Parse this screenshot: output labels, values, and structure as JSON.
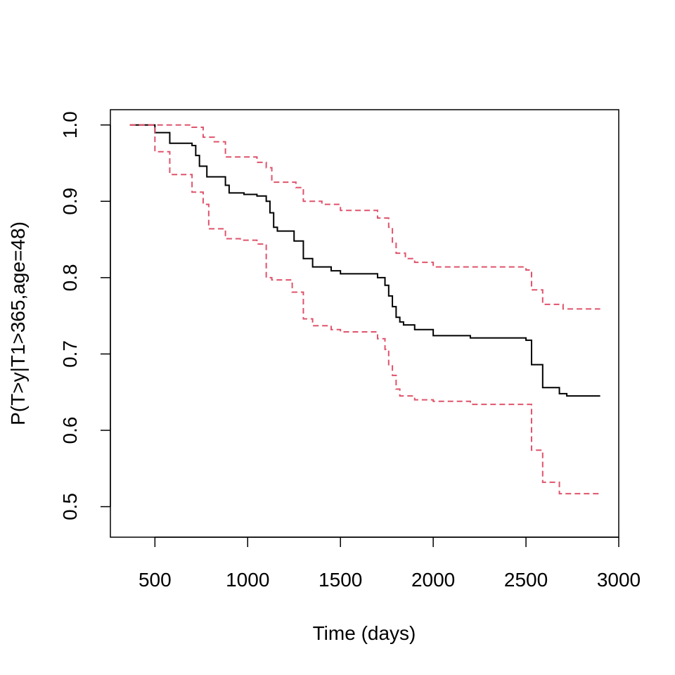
{
  "chart_data": {
    "type": "line",
    "title": "",
    "xlabel": "Time (days)",
    "ylabel": "P(T>y|T1>365,age=48)",
    "xlim": [
      260,
      3000
    ],
    "ylim": [
      0.46,
      1.02
    ],
    "x_ticks": [
      500,
      1000,
      1500,
      2000,
      2500,
      3000
    ],
    "y_ticks": [
      0.5,
      0.6,
      0.7,
      0.8,
      0.9,
      1.0
    ],
    "x_tick_labels": [
      "500",
      "1000",
      "1500",
      "2000",
      "2500",
      "3000"
    ],
    "y_tick_labels": [
      "0.5",
      "0.6",
      "0.7",
      "0.8",
      "0.9",
      "1.0"
    ],
    "grid": false,
    "legend": "none",
    "series": [
      {
        "role": "estimate",
        "color": "#000000",
        "style": "solid",
        "step": true,
        "x": [
          365,
          500,
          580,
          700,
          720,
          740,
          780,
          880,
          900,
          980,
          1050,
          1100,
          1120,
          1140,
          1160,
          1250,
          1300,
          1350,
          1450,
          1500,
          1700,
          1740,
          1760,
          1780,
          1800,
          1820,
          1840,
          1900,
          2000,
          2200,
          2500,
          2530,
          2590,
          2680,
          2720,
          2900
        ],
        "y": [
          1.0,
          0.99,
          0.976,
          0.973,
          0.96,
          0.946,
          0.932,
          0.921,
          0.911,
          0.909,
          0.907,
          0.9,
          0.885,
          0.866,
          0.861,
          0.848,
          0.825,
          0.814,
          0.809,
          0.805,
          0.8,
          0.79,
          0.776,
          0.762,
          0.748,
          0.742,
          0.738,
          0.732,
          0.724,
          0.721,
          0.718,
          0.686,
          0.656,
          0.648,
          0.645,
          0.645
        ]
      },
      {
        "role": "upper",
        "color": "#DF536B",
        "style": "dashed",
        "step": true,
        "x": [
          365,
          700,
          760,
          820,
          880,
          1050,
          1100,
          1130,
          1260,
          1300,
          1400,
          1500,
          1700,
          1760,
          1780,
          1800,
          1850,
          1900,
          2000,
          2500,
          2530,
          2590,
          2700,
          2900
        ],
        "y": [
          1.0,
          0.997,
          0.984,
          0.978,
          0.958,
          0.951,
          0.944,
          0.925,
          0.918,
          0.9,
          0.896,
          0.888,
          0.878,
          0.866,
          0.845,
          0.832,
          0.825,
          0.82,
          0.814,
          0.81,
          0.784,
          0.765,
          0.759,
          0.759
        ]
      },
      {
        "role": "lower",
        "color": "#DF536B",
        "style": "dashed",
        "step": true,
        "x": [
          365,
          500,
          580,
          700,
          760,
          790,
          880,
          960,
          1050,
          1100,
          1130,
          1240,
          1300,
          1350,
          1450,
          1500,
          1700,
          1740,
          1760,
          1780,
          1800,
          1820,
          1900,
          2000,
          2200,
          2500,
          2530,
          2590,
          2680,
          2900
        ],
        "y": [
          1.0,
          0.965,
          0.935,
          0.912,
          0.896,
          0.864,
          0.851,
          0.849,
          0.844,
          0.8,
          0.797,
          0.781,
          0.746,
          0.737,
          0.732,
          0.729,
          0.72,
          0.706,
          0.686,
          0.672,
          0.654,
          0.645,
          0.64,
          0.638,
          0.634,
          0.634,
          0.574,
          0.532,
          0.517,
          0.517
        ]
      }
    ]
  }
}
